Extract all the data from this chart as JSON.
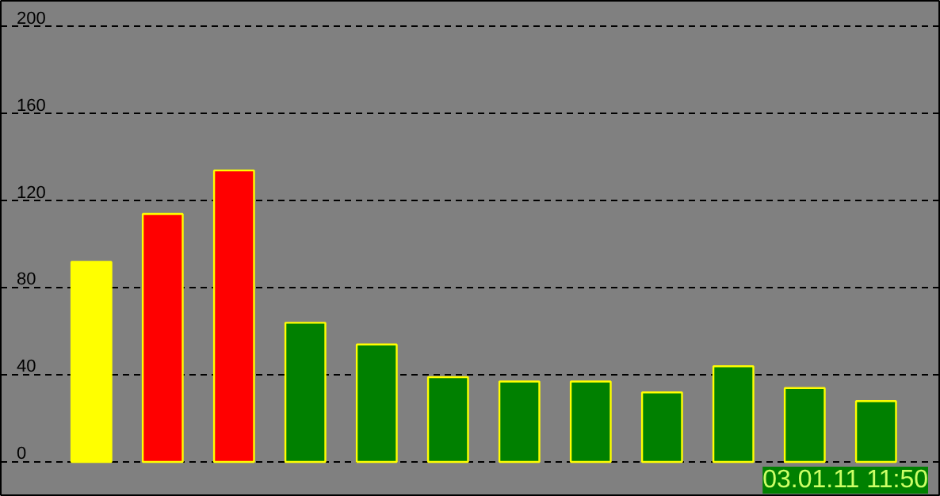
{
  "chart_data": {
    "type": "bar",
    "categories": [
      null,
      null,
      null,
      null,
      null,
      null,
      null,
      null,
      null,
      null,
      null,
      null
    ],
    "values": [
      92,
      114,
      134,
      64,
      54,
      39,
      37,
      37,
      32,
      44,
      34,
      28
    ],
    "colors": [
      "#ffff00",
      "#ff0000",
      "#ff0000",
      "#008000",
      "#008000",
      "#008000",
      "#008000",
      "#008000",
      "#008000",
      "#008000",
      "#008000",
      "#008000"
    ],
    "ylim": [
      -16,
      212
    ],
    "yticks": [
      0,
      40,
      80,
      120,
      160,
      200
    ],
    "grid": "y",
    "annotations": [
      "03.01.11 11:50"
    ]
  }
}
